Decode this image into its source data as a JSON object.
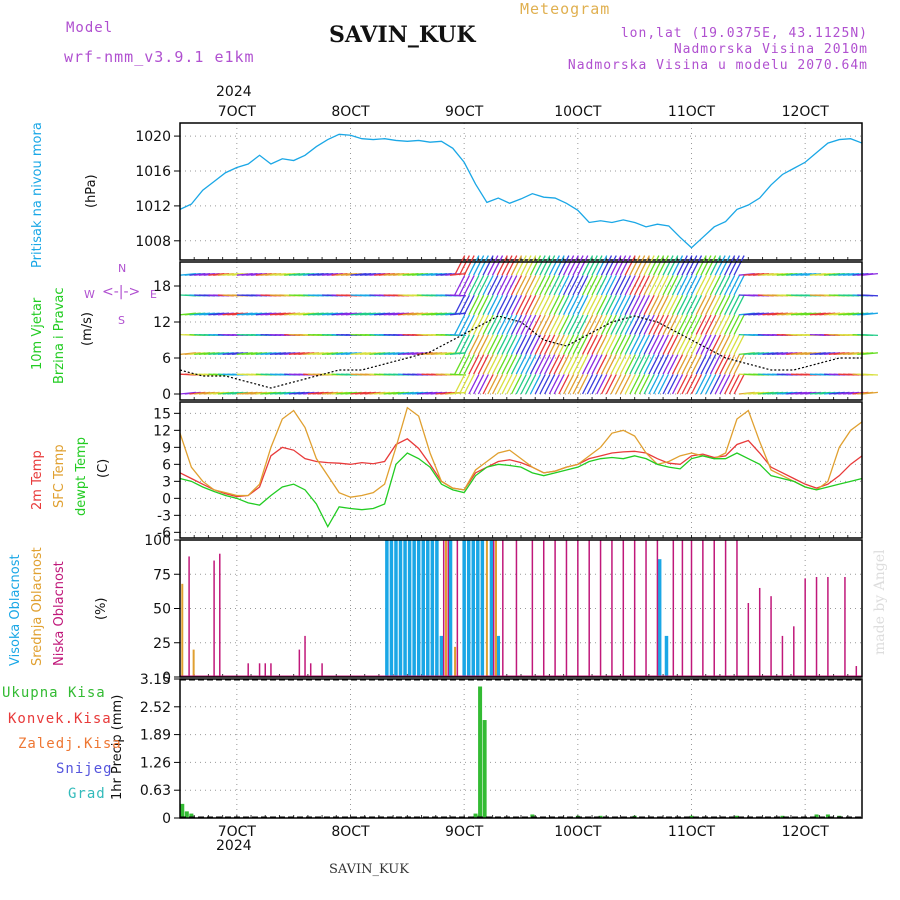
{
  "header": {
    "model_label": "Model",
    "model_name": "wrf-nmm_v3.9.1  e1km",
    "station": "SAVIN_KUK",
    "meteogram": "Meteogram",
    "lonlat": "lon,lat (19.0375E, 43.1125N)",
    "altitude": "Nadmorska Visina 2010m",
    "model_altitude": "Nadmorska Visina u modelu 2070.64m",
    "footer_station": "SAVIN_KUK",
    "watermark": "made by Angel"
  },
  "time_axis": {
    "year": "2024",
    "day_labels": [
      "7OCT",
      "8OCT",
      "9OCT",
      "10OCT",
      "11OCT",
      "12OCT"
    ],
    "day_values": [
      7,
      8,
      9,
      10,
      11,
      12
    ],
    "range": [
      6.5,
      12.5
    ]
  },
  "panel_labels": {
    "pressure": [
      "Pritisak na nivou mora",
      "(hPa)"
    ],
    "wind": [
      "10m Vjetar",
      "Brzina i Pravac",
      "(m/s)"
    ],
    "wind_rose": {
      "n": "N",
      "s": "S",
      "e": "E",
      "w": "W"
    },
    "temp": [
      "2m Temp",
      "SFC Temp",
      "dewpt Temp",
      "(C)"
    ],
    "cloud": [
      "Visoka Oblacnost",
      "Srednja Oblacnost",
      "Niska Oblacnost",
      "(%)"
    ],
    "precip_unit": "1hr Precip (mm)",
    "precip_legend": [
      "Ukupna Kisa",
      "Konvek.Kisa",
      "Zaledj.Kisa",
      "Snijeg",
      "Grad"
    ]
  },
  "colors": {
    "pressure": "#1aa7e6",
    "temp2m": "#e83a3a",
    "sfc": "#e0a030",
    "dewpt": "#22cc22",
    "high_cloud": "#1aa7e6",
    "mid_cloud": "#e0a030",
    "low_cloud": "#c0187a",
    "total_rain": "#33bb33",
    "conv_rain": "#e83a3a",
    "frz_rain": "#ee7733",
    "snow": "#5555dd",
    "hail": "#33bbbb",
    "purple_text": "#b050d0",
    "gold_text": "#e0b050"
  },
  "chart_data": [
    {
      "type": "line",
      "ylabel": "(hPa)",
      "y_ticks": [
        1008,
        1012,
        1016,
        1020
      ],
      "ylim": [
        1005.8,
        1021.5
      ],
      "grid": true,
      "x": [
        6.5,
        6.6,
        6.7,
        6.8,
        6.9,
        7.0,
        7.1,
        7.2,
        7.3,
        7.4,
        7.5,
        7.6,
        7.7,
        7.8,
        7.9,
        8.0,
        8.1,
        8.2,
        8.3,
        8.4,
        8.5,
        8.6,
        8.7,
        8.8,
        8.9,
        9.0,
        9.1,
        9.2,
        9.3,
        9.4,
        9.5,
        9.6,
        9.7,
        9.8,
        9.9,
        10.0,
        10.1,
        10.2,
        10.3,
        10.4,
        10.5,
        10.6,
        10.7,
        10.8,
        10.9,
        11.0,
        11.1,
        11.2,
        11.3,
        11.4,
        11.5,
        11.6,
        11.7,
        11.8,
        11.9,
        12.0,
        12.1,
        12.2,
        12.3,
        12.4,
        12.5
      ],
      "values": [
        1011.6,
        1012.2,
        1013.8,
        1014.8,
        1015.8,
        1016.4,
        1016.8,
        1017.8,
        1016.8,
        1017.4,
        1017.2,
        1017.8,
        1018.8,
        1019.6,
        1020.2,
        1020.1,
        1019.7,
        1019.6,
        1019.7,
        1019.5,
        1019.4,
        1019.5,
        1019.3,
        1019.4,
        1018.6,
        1017.0,
        1014.5,
        1012.4,
        1012.9,
        1012.3,
        1012.8,
        1013.4,
        1013.0,
        1012.9,
        1012.3,
        1011.5,
        1010.1,
        1010.3,
        1010.1,
        1010.4,
        1010.1,
        1009.6,
        1009.9,
        1009.7,
        1008.4,
        1007.2,
        1008.4,
        1009.6,
        1010.2,
        1011.6,
        1012.1,
        1012.9,
        1014.4,
        1015.6,
        1016.3,
        1017.0,
        1018.1,
        1019.2,
        1019.6,
        1019.7,
        1019.2
      ]
    },
    {
      "type": "line",
      "ylabel": "(m/s)",
      "y_ticks": [
        0,
        6,
        12,
        18
      ],
      "ylim": [
        -1,
        22
      ],
      "grid": true,
      "x": [
        6.5,
        6.7,
        6.9,
        7.1,
        7.3,
        7.5,
        7.7,
        7.9,
        8.1,
        8.3,
        8.5,
        8.7,
        8.9,
        9.1,
        9.3,
        9.5,
        9.7,
        9.9,
        10.1,
        10.3,
        10.5,
        10.7,
        10.9,
        11.1,
        11.3,
        11.5,
        11.7,
        11.9,
        12.1,
        12.3,
        12.5
      ],
      "values": [
        4,
        3,
        3,
        2,
        1,
        2,
        3,
        4,
        4,
        5,
        6,
        7,
        9,
        11,
        13,
        12,
        9,
        8,
        10,
        12,
        13,
        12,
        10,
        8,
        6,
        5,
        4,
        4,
        5,
        6,
        6
      ],
      "barb_colors": [
        "#e83a3a",
        "#e0a030",
        "#d8e040",
        "#66dd22",
        "#22cc88",
        "#1aa7e6",
        "#3b3bdd",
        "#8a2be2"
      ]
    },
    {
      "type": "line",
      "ylabel": "(C)",
      "y_ticks": [
        -6,
        -3,
        0,
        3,
        6,
        9,
        12,
        15
      ],
      "ylim": [
        -7,
        17
      ],
      "grid": true,
      "x": [
        6.5,
        6.6,
        6.7,
        6.8,
        6.9,
        7.0,
        7.1,
        7.2,
        7.3,
        7.4,
        7.5,
        7.6,
        7.7,
        7.8,
        7.9,
        8.0,
        8.1,
        8.2,
        8.3,
        8.4,
        8.5,
        8.6,
        8.7,
        8.8,
        8.9,
        9.0,
        9.1,
        9.2,
        9.3,
        9.4,
        9.5,
        9.6,
        9.7,
        9.8,
        9.9,
        10.0,
        10.1,
        10.2,
        10.3,
        10.4,
        10.5,
        10.6,
        10.7,
        10.8,
        10.9,
        11.0,
        11.1,
        11.2,
        11.3,
        11.4,
        11.5,
        11.6,
        11.7,
        11.8,
        11.9,
        12.0,
        12.1,
        12.2,
        12.3,
        12.4,
        12.5
      ],
      "series": [
        {
          "name": "2m Temp",
          "values": [
            4.5,
            3.5,
            2.5,
            1.5,
            0.8,
            0.3,
            0.5,
            2.0,
            7.5,
            9.0,
            8.5,
            7.0,
            6.5,
            6.3,
            6.2,
            6.0,
            6.3,
            6.1,
            6.5,
            9.5,
            10.5,
            8.8,
            6.0,
            3.0,
            1.8,
            1.5,
            4.5,
            5.5,
            6.5,
            6.8,
            6.3,
            5.5,
            4.5,
            4.8,
            5.5,
            6.0,
            7.0,
            7.5,
            8.0,
            8.2,
            8.3,
            8.0,
            7.0,
            6.2,
            6.0,
            7.5,
            7.8,
            7.2,
            7.5,
            9.5,
            10.2,
            8.0,
            5.5,
            4.5,
            3.5,
            2.5,
            1.8,
            2.5,
            4.0,
            6.0,
            7.5
          ]
        },
        {
          "name": "SFC Temp",
          "values": [
            11.5,
            5.5,
            3.0,
            1.5,
            1.0,
            0.5,
            0.5,
            2.5,
            9.0,
            14.0,
            15.5,
            12.5,
            7.0,
            4.0,
            1.0,
            0.2,
            0.5,
            1.0,
            2.5,
            9.0,
            16.0,
            14.5,
            8.0,
            3.0,
            1.8,
            1.5,
            5.0,
            6.5,
            8.0,
            8.5,
            7.0,
            5.5,
            4.5,
            4.8,
            5.5,
            6.0,
            7.5,
            9.0,
            11.5,
            12.0,
            11.0,
            8.0,
            6.0,
            6.5,
            7.5,
            8.0,
            7.5,
            7.0,
            8.0,
            14.0,
            15.5,
            10.0,
            5.0,
            4.0,
            3.0,
            2.0,
            1.5,
            3.0,
            9.0,
            12.0,
            13.5
          ]
        },
        {
          "name": "dewpt Temp",
          "values": [
            3.5,
            3.0,
            2.0,
            1.2,
            0.5,
            0.0,
            -0.8,
            -1.2,
            0.5,
            2.0,
            2.5,
            1.5,
            -1.0,
            -5.0,
            -1.5,
            -1.8,
            -2.0,
            -1.8,
            -1.0,
            6.0,
            8.0,
            7.0,
            5.5,
            2.5,
            1.5,
            1.0,
            4.0,
            5.5,
            6.0,
            5.8,
            5.5,
            4.5,
            4.0,
            4.5,
            5.0,
            5.5,
            6.5,
            7.0,
            7.2,
            7.0,
            7.5,
            7.0,
            6.0,
            5.5,
            5.2,
            7.0,
            7.5,
            7.0,
            7.0,
            8.0,
            7.0,
            6.0,
            4.0,
            3.5,
            3.0,
            2.0,
            1.5,
            2.0,
            2.5,
            3.0,
            3.5
          ]
        }
      ]
    },
    {
      "type": "bar",
      "ylabel": "(%)",
      "y_ticks": [
        0,
        25,
        50,
        75,
        100
      ],
      "ylim": [
        0,
        100
      ],
      "grid": true,
      "series": [
        {
          "name": "Visoka Oblacnost",
          "x": [
            8.32,
            8.36,
            8.4,
            8.44,
            8.48,
            8.52,
            8.56,
            8.6,
            8.64,
            8.68,
            8.72,
            8.76,
            8.8,
            8.88,
            9.0,
            9.04,
            9.08,
            9.12,
            9.16,
            9.24,
            9.3,
            10.72,
            10.78
          ],
          "values": [
            100,
            100,
            100,
            100,
            100,
            100,
            100,
            100,
            100,
            100,
            100,
            100,
            30,
            100,
            100,
            100,
            100,
            100,
            100,
            100,
            30,
            86,
            30
          ]
        },
        {
          "name": "Srednja Oblacnost",
          "x": [
            6.52,
            6.62,
            8.84,
            8.92,
            9.2,
            9.28
          ],
          "values": [
            68,
            20,
            100,
            22,
            100,
            100
          ]
        },
        {
          "name": "Niska Oblacnost",
          "x": [
            6.58,
            6.8,
            6.85,
            7.1,
            7.2,
            7.25,
            7.3,
            7.55,
            7.6,
            7.65,
            7.75,
            8.82,
            8.86,
            8.94,
            9.26,
            9.34,
            9.46,
            9.6,
            9.7,
            9.8,
            9.9,
            10.0,
            10.1,
            10.2,
            10.3,
            10.4,
            10.5,
            10.6,
            10.7,
            10.84,
            10.92,
            11.0,
            11.1,
            11.2,
            11.3,
            11.4,
            11.5,
            11.6,
            11.7,
            11.8,
            11.9,
            12.0,
            12.1,
            12.2,
            12.35,
            12.45
          ],
          "values": [
            88,
            85,
            90,
            10,
            10,
            10,
            10,
            20,
            30,
            10,
            10,
            100,
            100,
            100,
            100,
            100,
            100,
            100,
            100,
            100,
            100,
            100,
            100,
            100,
            100,
            100,
            100,
            100,
            100,
            100,
            100,
            100,
            100,
            100,
            100,
            100,
            54,
            65,
            59,
            30,
            37,
            72,
            73,
            73,
            73,
            8
          ]
        }
      ]
    },
    {
      "type": "bar",
      "ylabel": "1hr Precip (mm)",
      "y_ticks": [
        0,
        0.63,
        1.26,
        1.89,
        2.52,
        3.15
      ],
      "ylim": [
        0,
        3.15
      ],
      "grid": true,
      "series": [
        {
          "name": "Ukupna Kisa",
          "x": [
            6.52,
            6.56,
            6.6,
            9.1,
            9.14,
            9.18,
            9.6,
            10.0,
            10.2,
            10.5,
            11.0,
            11.4,
            11.8,
            12.1,
            12.2,
            12.3
          ],
          "values": [
            0.32,
            0.15,
            0.1,
            0.1,
            2.98,
            2.22,
            0.08,
            0.05,
            0.05,
            0.05,
            0.05,
            0.05,
            0.05,
            0.08,
            0.08,
            0.05
          ]
        }
      ]
    }
  ]
}
